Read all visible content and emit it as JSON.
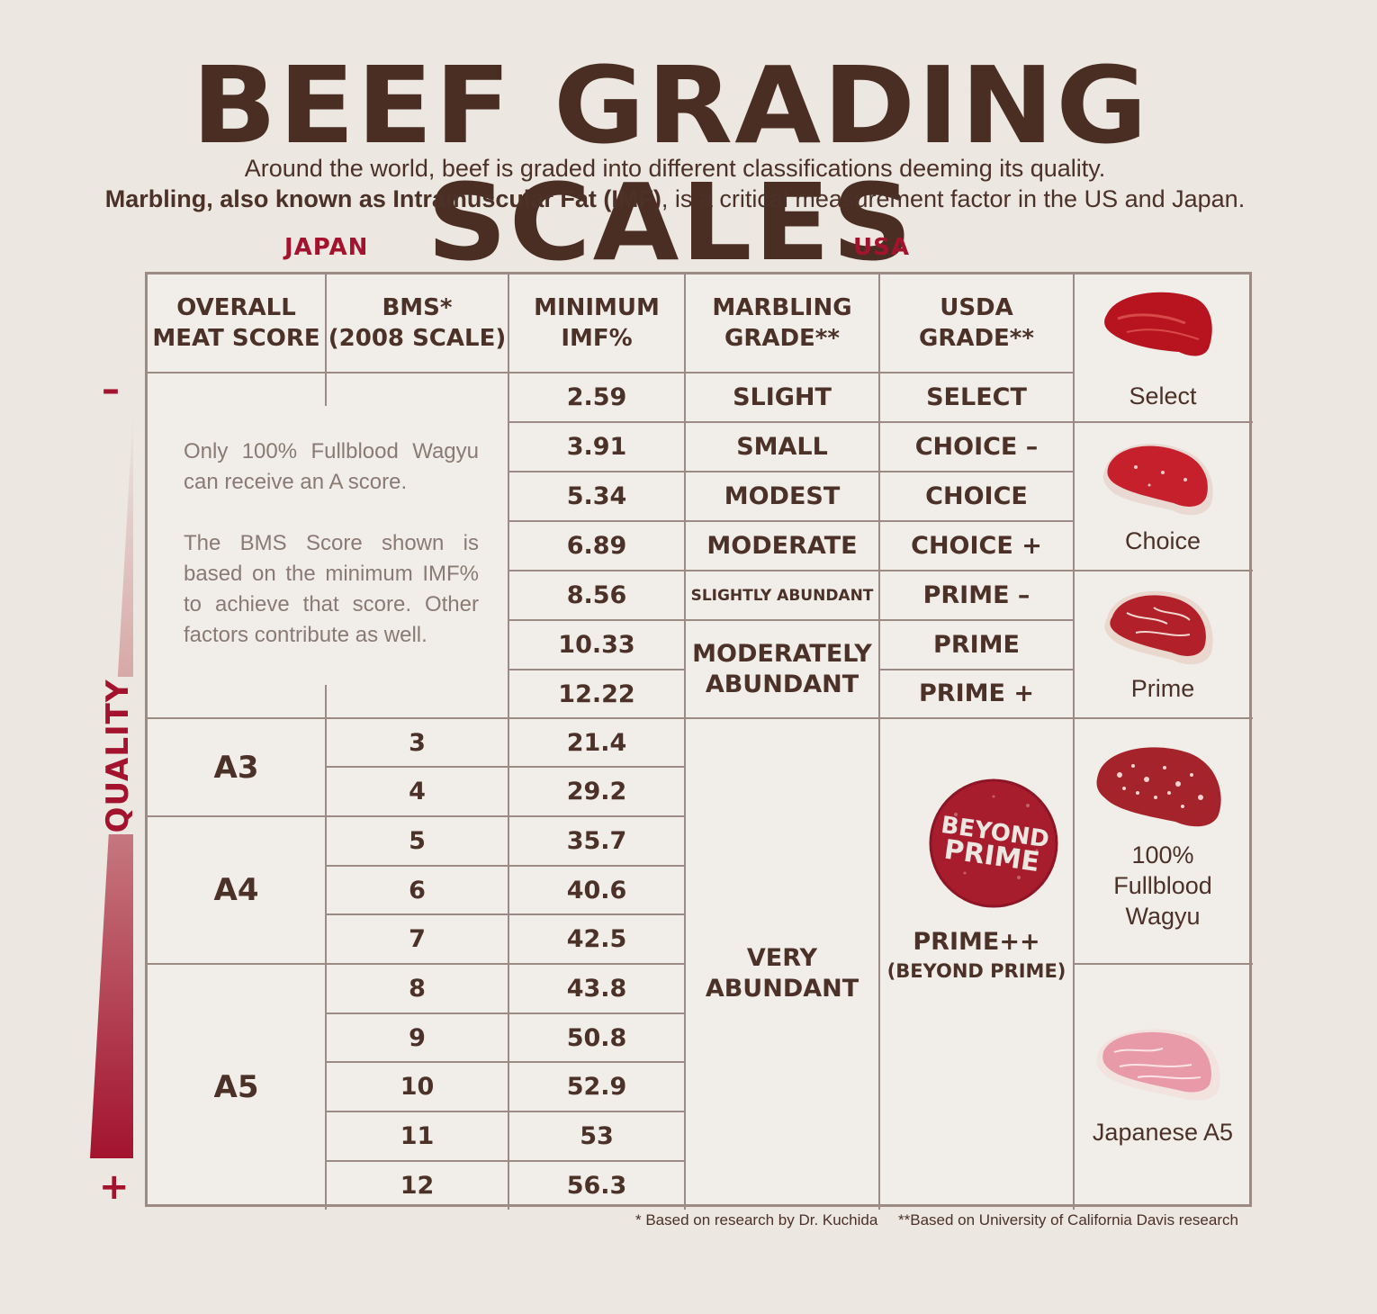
{
  "title": "BEEF GRADING SCALES",
  "subtitle_line1": "Around the world, beef is graded into different classifications deeming its quality.",
  "subtitle_line2_bold": "Marbling, also known as Intramuscular Fat (IMF)",
  "subtitle_line2_rest": ", is a critical measurement factor in the US and Japan.",
  "regions": {
    "japan": "JAPAN",
    "usa": "USA"
  },
  "axis": {
    "label": "QUALITY",
    "minus": "–",
    "plus": "+"
  },
  "headers": {
    "overall_1": "OVERALL",
    "overall_2": "MEAT SCORE",
    "bms_1": "BMS*",
    "bms_2": "(2008 SCALE)",
    "imf_1": "MINIMUM",
    "imf_2": "IMF%",
    "marbling_1": "MARBLING",
    "marbling_2": "GRADE**",
    "usda_1": "USDA",
    "usda_2": "GRADE**"
  },
  "note_1": "Only 100% Fullblood Wagyu can receive an A score.",
  "note_2": "The BMS Score shown is based on the minimum IMF% to achieve that score. Other factors contribute as well.",
  "imf": [
    "2.59",
    "3.91",
    "5.34",
    "6.89",
    "8.56",
    "10.33",
    "12.22",
    "21.4",
    "29.2",
    "35.7",
    "40.6",
    "42.5",
    "43.8",
    "50.8",
    "52.9",
    "53",
    "56.3"
  ],
  "bms": [
    "3",
    "4",
    "5",
    "6",
    "7",
    "8",
    "9",
    "10",
    "11",
    "12"
  ],
  "scores": {
    "a3": "A3",
    "a4": "A4",
    "a5": "A5"
  },
  "marbling": {
    "slight": "SLIGHT",
    "small": "SMALL",
    "modest": "MODEST",
    "moderate": "MODERATE",
    "slightly_abundant": "SLIGHTLY ABUNDANT",
    "mod_abundant_1": "MODERATELY",
    "mod_abundant_2": "ABUNDANT",
    "very_abundant_1": "VERY",
    "very_abundant_2": "ABUNDANT"
  },
  "usda": {
    "select": "SELECT",
    "choice_minus": "CHOICE –",
    "choice": "CHOICE",
    "choice_plus": "CHOICE +",
    "prime_minus": "PRIME –",
    "prime": "PRIME",
    "prime_plus": "PRIME +",
    "prime_pp": "PRIME++",
    "beyond": "(BEYOND PRIME)"
  },
  "badge": {
    "line1": "BEYOND",
    "line2": "PRIME"
  },
  "captions": {
    "select": "Select",
    "choice": "Choice",
    "prime": "Prime",
    "wagyu_1": "100%",
    "wagyu_2": "Fullblood",
    "wagyu_3": "Wagyu",
    "a5": "Japanese A5"
  },
  "footnotes": {
    "one": "* Based on research by Dr. Kuchida",
    "two": "**Based on University of California Davis research"
  },
  "colors": {
    "brown": "#4a2e24",
    "red": "#a3132e",
    "grid": "#9b8b84",
    "paper": "#ece7e1"
  }
}
